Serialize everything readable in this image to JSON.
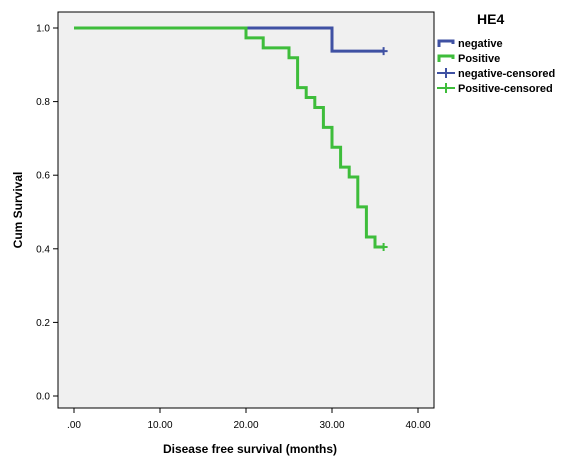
{
  "chart_data": {
    "type": "line",
    "subtype": "kaplan-meier step curve",
    "xlabel": "Disease free survival (months)",
    "ylabel": "Cum Survival",
    "xlim": [
      0,
      40
    ],
    "ylim": [
      0,
      1.05
    ],
    "x_ticks": [
      0,
      10,
      20,
      30,
      40
    ],
    "x_tick_labels": [
      ".00",
      "10.00",
      "20.00",
      "30.00",
      "40.00"
    ],
    "y_ticks": [
      0,
      0.2,
      0.4,
      0.6,
      0.8,
      1.0
    ],
    "y_tick_labels": [
      "0.0",
      "0.2",
      "0.4",
      "0.6",
      "0.8",
      "1.0"
    ],
    "grid": false,
    "legend_title": "HE4",
    "legend_position": "right",
    "legend": [
      {
        "label": "negative",
        "kind": "line",
        "color": "#3f51a3"
      },
      {
        "label": "Positive",
        "kind": "line",
        "color": "#3ebd3b"
      },
      {
        "label": "negative-censored",
        "kind": "censor",
        "color": "#3f51a3"
      },
      {
        "label": "Positive-censored",
        "kind": "censor",
        "color": "#3ebd3b"
      }
    ],
    "series": [
      {
        "name": "negative",
        "color": "#3f51a3",
        "steps": [
          [
            0,
            1.0
          ],
          [
            30,
            0.937
          ]
        ],
        "end_x": 36,
        "censored": [
          [
            36,
            0.937
          ]
        ]
      },
      {
        "name": "Positive",
        "color": "#3ebd3b",
        "steps": [
          [
            0,
            1.0
          ],
          [
            20,
            0.973
          ],
          [
            22,
            0.946
          ],
          [
            25,
            0.919
          ],
          [
            26,
            0.838
          ],
          [
            27,
            0.811
          ],
          [
            28,
            0.784
          ],
          [
            29,
            0.73
          ],
          [
            30,
            0.676
          ],
          [
            31,
            0.622
          ],
          [
            32,
            0.595
          ],
          [
            33,
            0.514
          ],
          [
            34,
            0.432
          ],
          [
            35,
            0.405
          ]
        ],
        "end_x": 36,
        "censored": [
          [
            36,
            0.405
          ]
        ]
      }
    ]
  },
  "colors": {
    "plot_background": "#f0f0f0",
    "frame": "#000000"
  }
}
